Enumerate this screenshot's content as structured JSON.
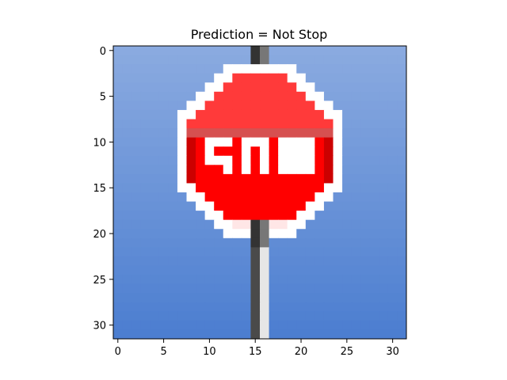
{
  "chart_data": {
    "type": "heatmap",
    "title": "Prediction = Not Stop",
    "image_size": [
      32,
      32
    ],
    "xlim": [
      -0.5,
      31.5
    ],
    "ylim": [
      31.5,
      -0.5
    ],
    "x_ticks": [
      0,
      5,
      10,
      15,
      20,
      25,
      30
    ],
    "y_ticks": [
      0,
      5,
      10,
      15,
      20,
      25,
      30
    ],
    "colors": {
      "sky_top": "#8AAAE0",
      "sky_bottom": "#4C7ED0",
      "sign_red": "#FF0000",
      "sign_light_red": "#FF3A3A",
      "sign_dark_red": "#CC0000",
      "sign_border": "#FFFFFF",
      "pole_dark": "#4A4A4A",
      "pole_light": "#E6E6E6"
    },
    "legend": "none",
    "grid": false
  }
}
